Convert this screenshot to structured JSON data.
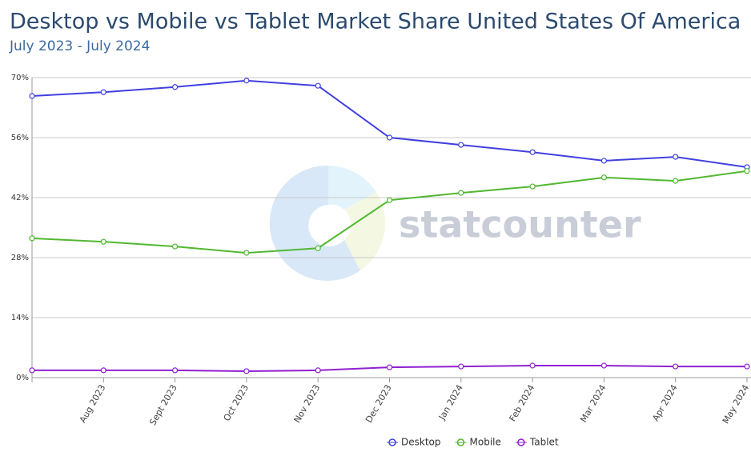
{
  "chart_data": {
    "type": "line",
    "title": "Desktop vs Mobile vs Tablet Market Share United States Of America",
    "subtitle": "July 2023 - July 2024",
    "watermark": "statcounter",
    "categories": [
      null,
      "Aug 2023",
      "Sept 2023",
      "Oct 2023",
      "Nov 2023",
      "Dec 2023",
      "Jan 2024",
      "Feb 2024",
      "Mar 2024",
      "Apr 2024",
      "May 2024"
    ],
    "series": [
      {
        "name": "Desktop",
        "color": "#4040e0",
        "values": [
          65.7,
          66.6,
          67.8,
          69.3,
          68.1,
          56.0,
          54.3,
          52.6,
          50.6,
          51.5,
          49.1
        ]
      },
      {
        "name": "Mobile",
        "color": "#50b830",
        "values": [
          32.5,
          31.7,
          30.6,
          29.1,
          30.2,
          41.4,
          43.1,
          44.6,
          46.7,
          45.9,
          48.2
        ]
      },
      {
        "name": "Tablet",
        "color": "#9020d0",
        "values": [
          1.7,
          1.7,
          1.7,
          1.5,
          1.7,
          2.4,
          2.6,
          2.8,
          2.8,
          2.6,
          2.6
        ]
      }
    ],
    "ylim": [
      0,
      70
    ],
    "yticks": [
      {
        "value": 0,
        "label": "0%"
      },
      {
        "value": 14,
        "label": "14%"
      },
      {
        "value": 28,
        "label": "28%"
      },
      {
        "value": 42,
        "label": "42%"
      },
      {
        "value": 56,
        "label": "56%"
      },
      {
        "value": 70,
        "label": "70%"
      }
    ],
    "grid": true,
    "legend": "bottom"
  }
}
